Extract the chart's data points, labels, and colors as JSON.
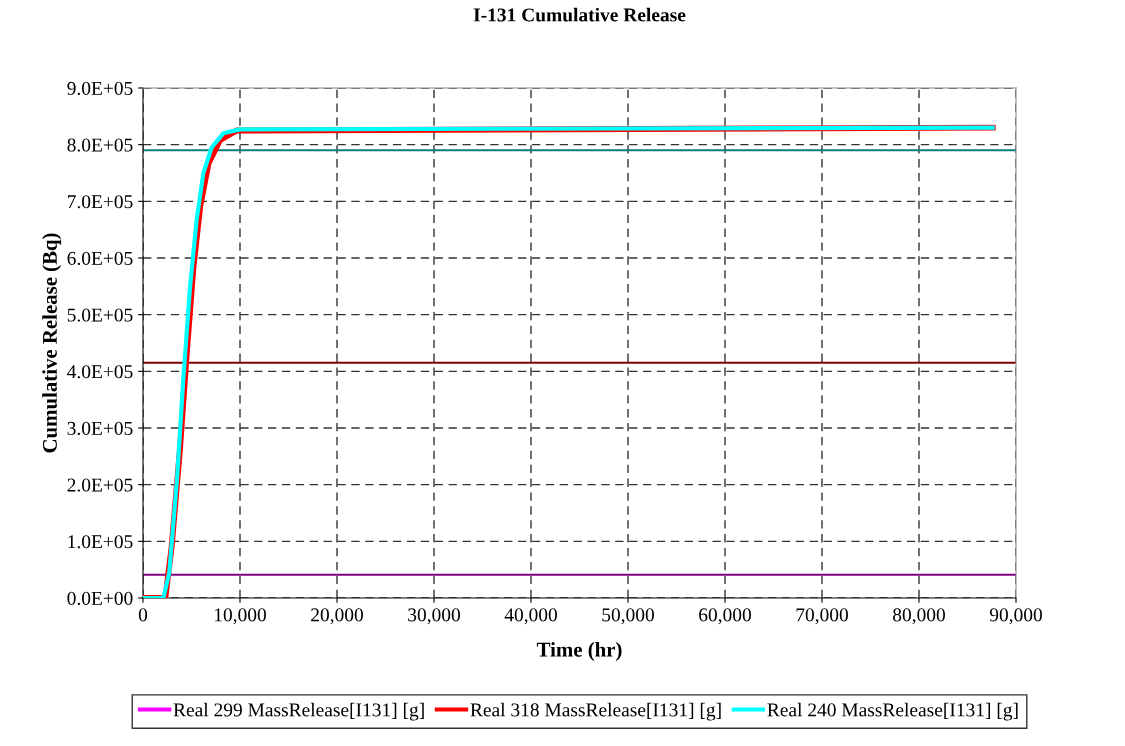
{
  "chart_data": {
    "type": "line",
    "title": "I-131 Cumulative Release",
    "xlabel": "Time (hr)",
    "ylabel": "Cumulative Release (Bq)",
    "xlim": [
      0,
      90000
    ],
    "xticks": [
      {
        "value": 0,
        "label": "0"
      },
      {
        "value": 10000,
        "label": "10,000"
      },
      {
        "value": 20000,
        "label": "20,000"
      },
      {
        "value": 30000,
        "label": "30,000"
      },
      {
        "value": 40000,
        "label": "40,000"
      },
      {
        "value": 50000,
        "label": "50,000"
      },
      {
        "value": 60000,
        "label": "60,000"
      },
      {
        "value": 70000,
        "label": "70,000"
      },
      {
        "value": 80000,
        "label": "80,000"
      },
      {
        "value": 90000,
        "label": "90,000"
      }
    ],
    "ylim": [
      0,
      900000
    ],
    "yticks": [
      {
        "value": 0,
        "label": "0.0E+00"
      },
      {
        "value": 100000,
        "label": "1.0E+05"
      },
      {
        "value": 200000,
        "label": "2.0E+05"
      },
      {
        "value": 300000,
        "label": "3.0E+05"
      },
      {
        "value": 400000,
        "label": "4.0E+05"
      },
      {
        "value": 500000,
        "label": "5.0E+05"
      },
      {
        "value": 600000,
        "label": "6.0E+05"
      },
      {
        "value": 700000,
        "label": "7.0E+05"
      },
      {
        "value": 800000,
        "label": "8.0E+05"
      },
      {
        "value": 900000,
        "label": "9.0E+05"
      }
    ],
    "grid": true,
    "legend": "bottom",
    "marker": "none",
    "line_style": "solid",
    "series": [
      {
        "name": "Real 299 MassRelease[I131] [g]",
        "color": "#ff00ff"
      },
      {
        "name": "Real 318 MassRelease[I131] [g]",
        "color": "#ff0000",
        "x": [
          0,
          2300,
          2950,
          3830,
          4510,
          5200,
          5890,
          6750,
          7930,
          9650,
          87600
        ],
        "values": [
          0,
          0,
          90000,
          267000,
          432000,
          584000,
          690000,
          767000,
          808000,
          825000,
          830000
        ]
      },
      {
        "name": "Real 240 MassRelease[I131] [g]",
        "color": "#00ffff",
        "x": [
          0,
          2100,
          2700,
          3500,
          4150,
          4850,
          5530,
          6220,
          7080,
          8280,
          9990,
          87600
        ],
        "values": [
          0,
          0,
          44000,
          208000,
          385000,
          549000,
          667000,
          750000,
          795000,
          820000,
          827000,
          830000
        ]
      }
    ],
    "ref_lines": [
      {
        "axis": "y",
        "value": 790000,
        "color": "#008080"
      },
      {
        "axis": "y",
        "value": 415000,
        "color": "#800000"
      },
      {
        "axis": "y",
        "value": 41000,
        "color": "#800080"
      }
    ]
  }
}
